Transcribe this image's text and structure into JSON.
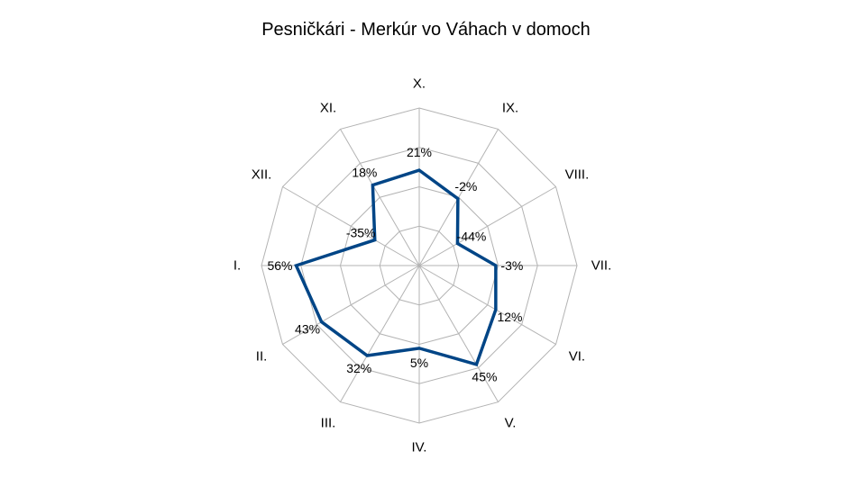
{
  "chart_data": {
    "type": "radar",
    "title": "Pesničkári - Merkúr vo Váhach v domoch",
    "categories": [
      "X.",
      "IX.",
      "VIII.",
      "VII.",
      "VI.",
      "V.",
      "IV.",
      "III.",
      "II.",
      "I.",
      "XII.",
      "XI."
    ],
    "series": [
      {
        "values": [
          21,
          -2,
          -44,
          -3,
          12,
          45,
          5,
          32,
          43,
          56,
          -35,
          18
        ]
      }
    ],
    "value_labels": [
      "21%",
      "-2%",
      "-44%",
      "-3%",
      "12%",
      "45%",
      "5%",
      "32%",
      "43%",
      "56%",
      "-35%",
      "18%"
    ],
    "rlim": [
      -100,
      100
    ],
    "grid_values": [
      -50,
      0,
      50,
      100
    ],
    "colors": {
      "series": "#004586",
      "grid": "#b3b3b3"
    }
  }
}
